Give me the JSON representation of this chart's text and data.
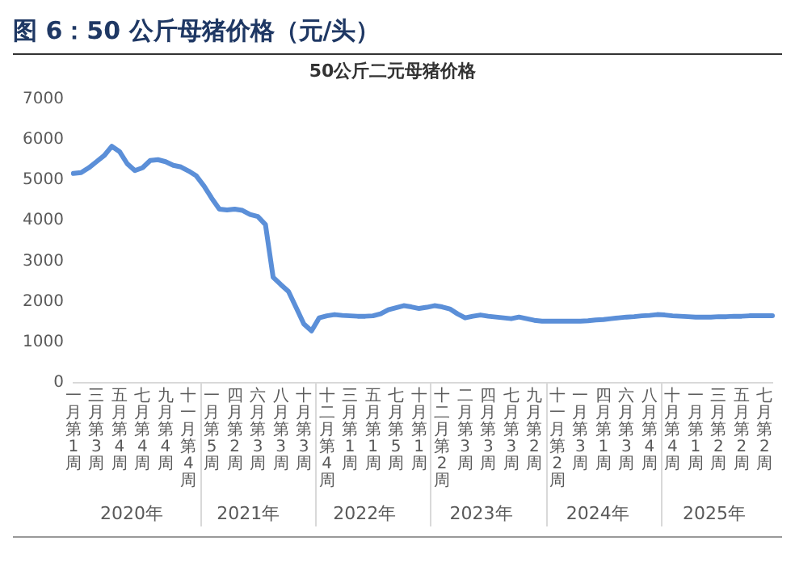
{
  "chart_data": {
    "type": "line",
    "title": "图 6：50 公斤母猪价格（元/头）",
    "subtitle": "50公斤二元母猪价格",
    "categories": [
      "一月第1周",
      null,
      null,
      "三月第3周",
      null,
      null,
      "五月第4周",
      null,
      null,
      "七月第4周",
      null,
      null,
      "九月第4周",
      null,
      null,
      "十一月第4周",
      null,
      null,
      "一月第5周",
      null,
      null,
      "四月第2周",
      null,
      null,
      "六月第3周",
      null,
      null,
      "八月第3周",
      null,
      null,
      "十月第3周",
      null,
      null,
      "十二月第4周",
      null,
      null,
      "三月第1周",
      null,
      null,
      "五月第1周",
      null,
      null,
      "七月第5周",
      null,
      null,
      "十月第1周",
      null,
      null,
      "十二月第2周",
      null,
      null,
      "二月第3周",
      null,
      null,
      "四月第3周",
      null,
      null,
      "七月第3周",
      null,
      null,
      "九月第2周",
      null,
      null,
      "十一月第2周",
      null,
      null,
      "一月第3周",
      null,
      null,
      "四月第1周",
      null,
      null,
      "六月第3周",
      null,
      null,
      "八月第4周",
      null,
      null,
      "十月第4周",
      null,
      null,
      "一月第1周",
      null,
      null,
      "三月第2周",
      null,
      null,
      "五月第2周",
      null,
      null,
      "七月第2周",
      null
    ],
    "series": [
      {
        "color": "#5b8fd8",
        "values": [
          5160,
          5180,
          5300,
          5450,
          5600,
          5830,
          5700,
          5400,
          5230,
          5300,
          5480,
          5500,
          5450,
          5360,
          5320,
          5220,
          5100,
          4850,
          4550,
          4280,
          4260,
          4280,
          4250,
          4150,
          4100,
          3900,
          2600,
          2420,
          2250,
          1850,
          1450,
          1280,
          1600,
          1650,
          1680,
          1660,
          1650,
          1640,
          1640,
          1650,
          1700,
          1800,
          1850,
          1900,
          1870,
          1830,
          1860,
          1900,
          1870,
          1820,
          1700,
          1600,
          1640,
          1670,
          1640,
          1620,
          1600,
          1580,
          1620,
          1580,
          1540,
          1520,
          1520,
          1520,
          1520,
          1520,
          1520,
          1530,
          1550,
          1560,
          1580,
          1600,
          1620,
          1630,
          1650,
          1660,
          1680,
          1670,
          1650,
          1640,
          1630,
          1620,
          1620,
          1620,
          1630,
          1630,
          1640,
          1640,
          1650,
          1650,
          1650,
          1650
        ]
      }
    ],
    "ylim": [
      0,
      7000
    ],
    "yticks": [
      0,
      1000,
      2000,
      3000,
      4000,
      5000,
      6000,
      7000
    ],
    "grid": false,
    "legend": false,
    "marker": "none",
    "line_style": "solid",
    "annotations": [
      "2020年",
      "2021年",
      "2022年",
      "2023年",
      "2024年",
      "2025年"
    ]
  }
}
